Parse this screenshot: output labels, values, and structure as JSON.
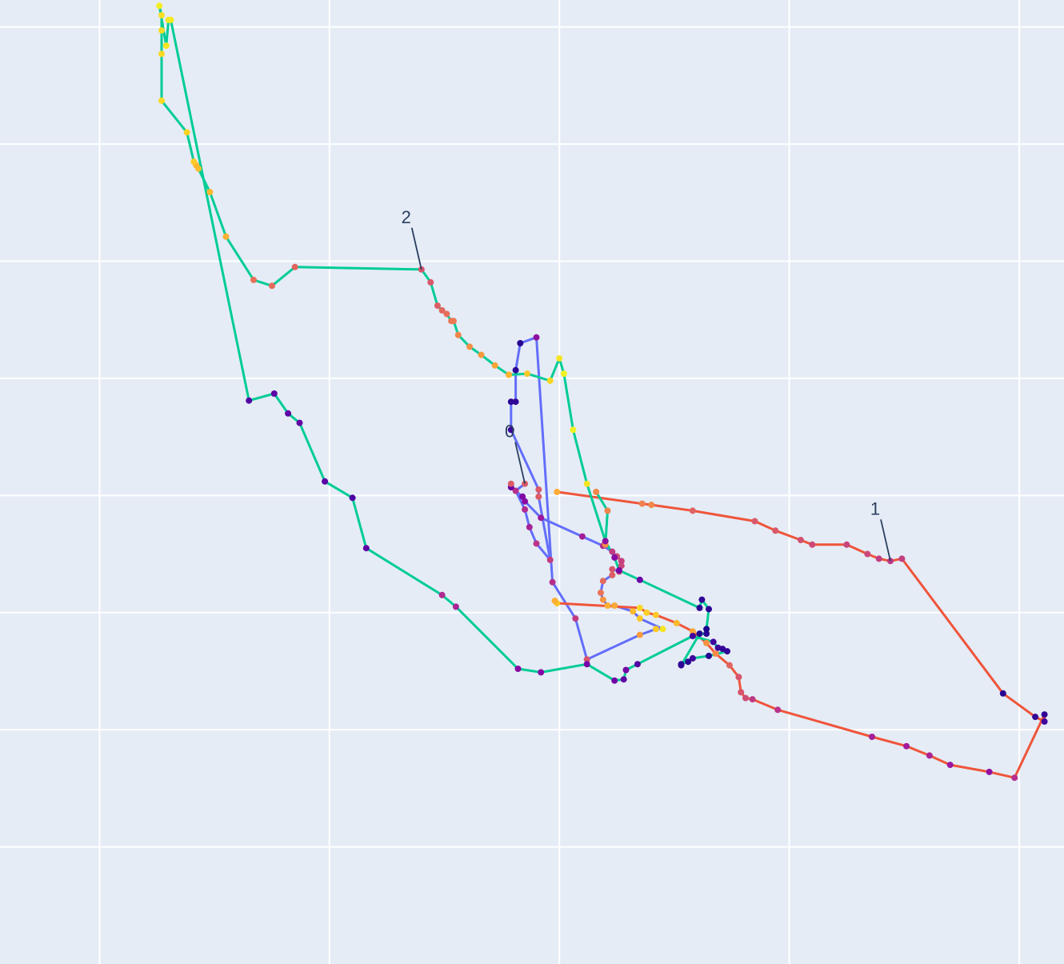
{
  "chart_data": {
    "type": "line",
    "title": "",
    "xlabel": "",
    "ylabel": "",
    "grid": true,
    "background": "#e5ecf6",
    "grid_color": "#ffffff",
    "annotation_color": "#2a3f5f",
    "x_ticks": [
      1,
      2,
      3,
      4,
      5
    ],
    "y_ticks": [
      1,
      2,
      3,
      4,
      5,
      6,
      7,
      8
    ],
    "xlim": [
      0.567,
      5.195
    ],
    "ylim": [
      0.0,
      8.23
    ],
    "series": [
      {
        "id": "0",
        "color": "#636efa",
        "x": [
          2.85,
          2.81,
          2.85,
          2.87,
          2.9,
          2.96,
          2.91,
          2.91,
          2.79,
          2.79,
          2.81,
          2.81,
          2.83,
          2.9,
          2.97,
          3.07,
          3.12,
          3.35,
          3.42,
          3.45,
          3.35,
          3.32,
          3.24,
          3.21,
          3.19,
          3.18,
          3.19,
          3.23,
          3.23,
          3.26,
          3.27,
          3.27,
          3.25,
          3.25,
          3.23,
          3.19,
          3.1,
          2.92,
          2.85,
          2.84,
          2.79,
          2.79
        ],
        "y": [
          4.1,
          4.04,
          3.88,
          3.73,
          3.59,
          3.45,
          3.99,
          4.05,
          4.56,
          4.8,
          4.8,
          5.07,
          5.3,
          5.35,
          3.26,
          2.95,
          2.6,
          2.81,
          2.86,
          2.86,
          2.95,
          3.01,
          3.06,
          3.06,
          3.11,
          3.17,
          3.27,
          3.32,
          3.37,
          3.35,
          3.4,
          3.44,
          3.48,
          3.48,
          3.52,
          3.57,
          3.65,
          3.81,
          3.95,
          3.99,
          4.07,
          4.1
        ],
        "c": [
          0.57,
          0.42,
          0.4,
          0.37,
          0.44,
          0.47,
          0.58,
          0.57,
          0.09,
          0.06,
          0.07,
          0.06,
          0.05,
          0.3,
          0.42,
          0.46,
          0.55,
          0.77,
          0.88,
          0.95,
          0.88,
          0.85,
          0.8,
          0.82,
          0.75,
          0.65,
          0.62,
          0.58,
          0.55,
          0.52,
          0.5,
          0.48,
          0.53,
          0.52,
          0.46,
          0.4,
          0.36,
          0.33,
          0.28,
          0.26,
          0.2,
          0.57
        ]
      },
      {
        "id": "1",
        "color": "#ef553b",
        "x": [
          2.99,
          3.36,
          3.4,
          3.58,
          3.85,
          3.94,
          4.05,
          4.1,
          4.25,
          4.34,
          4.39,
          4.44,
          4.49,
          4.93,
          5.07,
          5.11,
          5.11,
          4.98,
          4.87,
          4.7,
          4.61,
          4.51,
          4.36,
          3.95,
          3.84,
          3.81,
          3.79,
          3.78,
          3.74,
          3.68,
          3.64,
          3.58,
          3.51,
          3.42,
          3.38,
          3.35,
          2.99,
          2.98
        ],
        "y": [
          4.03,
          3.93,
          3.92,
          3.87,
          3.78,
          3.7,
          3.62,
          3.58,
          3.58,
          3.5,
          3.46,
          3.44,
          3.46,
          2.31,
          2.11,
          2.07,
          2.13,
          1.59,
          1.64,
          1.7,
          1.78,
          1.86,
          1.94,
          2.17,
          2.26,
          2.27,
          2.32,
          2.45,
          2.55,
          2.65,
          2.74,
          2.84,
          2.91,
          2.98,
          3.0,
          3.04,
          3.08,
          3.1
        ],
        "c": [
          0.81,
          0.69,
          0.71,
          0.59,
          0.56,
          0.56,
          0.53,
          0.51,
          0.49,
          0.5,
          0.47,
          0.45,
          0.47,
          0.05,
          0.07,
          0.1,
          0.07,
          0.42,
          0.3,
          0.33,
          0.38,
          0.35,
          0.36,
          0.43,
          0.45,
          0.52,
          0.55,
          0.55,
          0.6,
          0.72,
          0.74,
          0.8,
          0.85,
          0.88,
          0.9,
          0.92,
          0.87,
          0.82
        ]
      },
      {
        "id": "2",
        "color": "#00cc96",
        "x": [
          3.16,
          3.21,
          3.2,
          3.2,
          3.12,
          3.06,
          3.02,
          3.0,
          2.96,
          2.86,
          2.78,
          2.72,
          2.66,
          2.61,
          2.56,
          2.54,
          2.53,
          2.51,
          2.49,
          2.47,
          2.44,
          2.4,
          1.85,
          1.75,
          1.67,
          1.55,
          1.48,
          1.43,
          1.42,
          1.41,
          1.38,
          1.27,
          1.27,
          1.27,
          1.27,
          1.26,
          1.29,
          1.29,
          1.3,
          1.31,
          1.65,
          1.76,
          1.82,
          1.87,
          1.98,
          2.1,
          2.16,
          2.49,
          2.55,
          2.82,
          2.92,
          3.12,
          3.24,
          3.28,
          3.29,
          3.34,
          3.58,
          3.67,
          3.69,
          3.71,
          3.73,
          3.65,
          3.58,
          3.56,
          3.53,
          3.53,
          3.61,
          3.64,
          3.64,
          3.65,
          3.62,
          3.61,
          3.35,
          3.26,
          3.24,
          3.2
        ],
        "y": [
          4.03,
          3.87,
          3.58,
          3.61,
          4.1,
          4.56,
          5.04,
          5.17,
          4.98,
          5.04,
          5.03,
          5.11,
          5.2,
          5.27,
          5.37,
          5.49,
          5.49,
          5.55,
          5.58,
          5.62,
          5.82,
          5.93,
          5.95,
          5.79,
          5.84,
          6.21,
          6.59,
          6.79,
          6.82,
          6.85,
          7.1,
          7.37,
          7.77,
          7.97,
          8.1,
          8.18,
          7.84,
          7.84,
          8.06,
          8.06,
          4.81,
          4.87,
          4.7,
          4.62,
          4.12,
          3.98,
          3.55,
          3.15,
          3.05,
          2.52,
          2.49,
          2.56,
          2.42,
          2.43,
          2.51,
          2.56,
          2.8,
          2.75,
          2.7,
          2.69,
          2.67,
          2.63,
          2.61,
          2.58,
          2.56,
          2.55,
          2.82,
          2.82,
          2.86,
          3.03,
          3.11,
          3.04,
          3.28,
          3.36,
          3.47,
          3.61
        ],
        "c": [
          0.71,
          0.7,
          0.73,
          0.72,
          0.95,
          0.98,
          0.98,
          0.95,
          0.92,
          0.88,
          0.83,
          0.79,
          0.76,
          0.73,
          0.7,
          0.67,
          0.66,
          0.63,
          0.61,
          0.58,
          0.56,
          0.55,
          0.6,
          0.62,
          0.64,
          0.82,
          0.84,
          0.86,
          0.84,
          0.89,
          0.91,
          0.93,
          0.92,
          0.93,
          0.94,
          0.97,
          0.96,
          0.95,
          0.96,
          0.97,
          0.14,
          0.17,
          0.18,
          0.19,
          0.17,
          0.13,
          0.17,
          0.4,
          0.38,
          0.28,
          0.27,
          0.23,
          0.22,
          0.18,
          0.23,
          0.15,
          0.11,
          0.1,
          0.09,
          0.08,
          0.07,
          0.05,
          0.1,
          0.06,
          0.05,
          0.07,
          0.04,
          0.06,
          0.03,
          0.06,
          0.07,
          0.06,
          0.2,
          0.24,
          0.28,
          0.29
        ]
      }
    ],
    "annotations": [
      {
        "text": "0",
        "series": "0",
        "point": 0
      },
      {
        "text": "1",
        "series": "1",
        "point": 11
      },
      {
        "text": "2",
        "series": "2",
        "point": 21
      }
    ],
    "colorscale": [
      "#0d0887",
      "#46039f",
      "#7201a8",
      "#9c179e",
      "#bd3786",
      "#d8576b",
      "#ed7953",
      "#fb9f3a",
      "#fdca26",
      "#f0f921"
    ]
  }
}
